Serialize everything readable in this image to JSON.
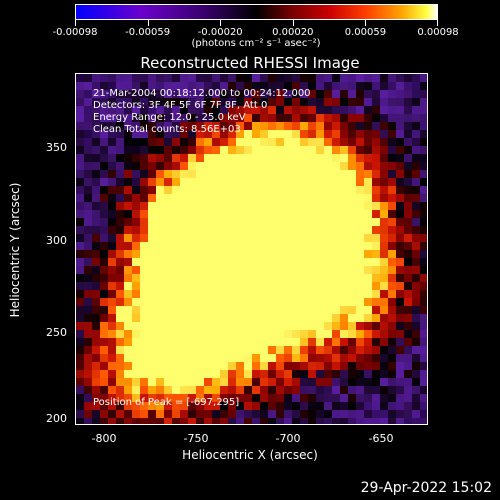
{
  "colorbar": {
    "ticks": [
      "-0.00098",
      "-0.00059",
      "-0.00020",
      "0.00020",
      "0.00059",
      "0.00098"
    ],
    "unit": "(photons cm⁻² s⁻¹ asec⁻²)"
  },
  "title": "Reconstructed RHESSI Image",
  "annotations": {
    "time": "21-Mar-2004 00:18:12.000 to 00:24:12.000",
    "detectors": "Detectors: 3F 4F 5F 6F 7F 8F, Att 0",
    "energy": "Energy Range: 12.0 - 25.0 keV",
    "clean": "Clean    Total counts: 8.56E+03",
    "peak": "Position of Peak = [-697,295]"
  },
  "axes": {
    "xlabel": "Heliocentric X (arcsec)",
    "ylabel": "Heliocentric Y (arcsec)",
    "xticks": [
      "-800",
      "-750",
      "-700",
      "-650"
    ],
    "yticks": [
      "350",
      "300",
      "250",
      "200"
    ]
  },
  "timestamp": "29-Apr-2022 15:02"
}
